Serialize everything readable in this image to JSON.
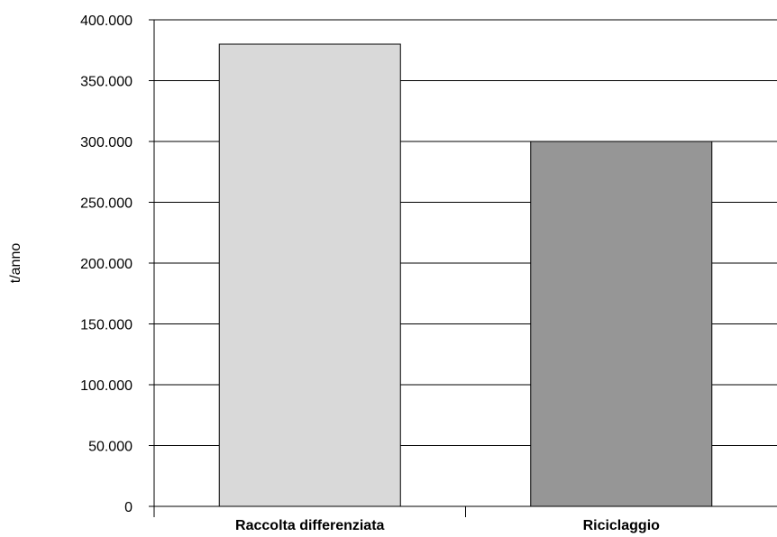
{
  "chart_data": {
    "type": "bar",
    "title": "",
    "xlabel": "",
    "ylabel": "t/anno",
    "categories": [
      "Raccolta differenziata",
      "Riciclaggio"
    ],
    "values": [
      380000,
      300000
    ],
    "colors": [
      "#d9d9d9",
      "#969696"
    ],
    "ylim": [
      0,
      400000
    ],
    "yticks": [
      0,
      50000,
      100000,
      150000,
      200000,
      250000,
      300000,
      350000,
      400000
    ],
    "ytick_labels": [
      "0",
      "50.000",
      "100.000",
      "150.000",
      "200.000",
      "250.000",
      "300.000",
      "350.000",
      "400.000"
    ],
    "grid": true,
    "legend": "none"
  }
}
